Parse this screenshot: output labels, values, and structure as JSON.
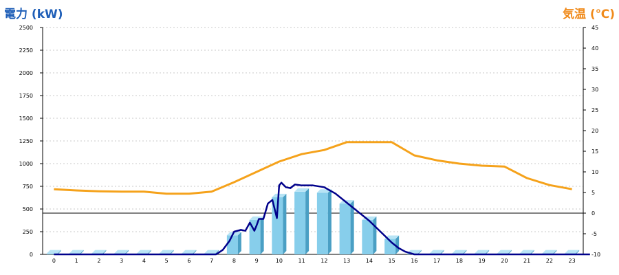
{
  "chart_data": {
    "type": "bar",
    "title_left": "電力 (kW)",
    "title_right": "気温 (℃)",
    "categories": [
      "0",
      "1",
      "2",
      "3",
      "4",
      "5",
      "6",
      "7",
      "8",
      "9",
      "10",
      "11",
      "12",
      "13",
      "14",
      "15",
      "16",
      "17",
      "18",
      "19",
      "20",
      "21",
      "22",
      "23"
    ],
    "y_left": {
      "min": 0,
      "max": 2500,
      "step": 250,
      "ticks": [
        "0",
        "250",
        "500",
        "750",
        "1000",
        "1250",
        "1500",
        "1750",
        "2000",
        "2250",
        "2500"
      ]
    },
    "y_right": {
      "min": -10,
      "max": 45,
      "step": 5,
      "ticks": [
        "-10",
        "-5",
        "0",
        "5",
        "10",
        "15",
        "20",
        "25",
        "30",
        "35",
        "40",
        "45"
      ]
    },
    "grid": true,
    "bars": {
      "name": "power_hourly",
      "axis": "left",
      "values": [
        10,
        10,
        10,
        10,
        10,
        10,
        10,
        10,
        210,
        380,
        630,
        690,
        680,
        560,
        380,
        170,
        10,
        10,
        10,
        10,
        10,
        10,
        10,
        10
      ]
    },
    "series": [
      {
        "name": "temperature",
        "axis": "right",
        "values": [
          5.8,
          5.5,
          5.3,
          5.2,
          5.2,
          4.7,
          4.7,
          5.2,
          7.5,
          10.0,
          12.5,
          14.3,
          15.3,
          17.2,
          17.2,
          17.2,
          14.0,
          12.8,
          12.0,
          11.5,
          11.3,
          8.5,
          6.8,
          5.8
        ]
      },
      {
        "name": "power_realtime",
        "axis": "left",
        "x": [
          0,
          7.2,
          7.5,
          7.8,
          8.0,
          8.3,
          8.5,
          8.7,
          8.9,
          9.0,
          9.1,
          9.3,
          9.5,
          9.7,
          9.9,
          10.0,
          10.1,
          10.3,
          10.5,
          10.7,
          11.0,
          11.5,
          12.0,
          12.5,
          13.0,
          13.5,
          14.0,
          14.5,
          15.0,
          15.3,
          15.6,
          16.0,
          23.8
        ],
        "values": [
          0,
          0,
          50,
          150,
          250,
          270,
          260,
          350,
          260,
          320,
          390,
          390,
          560,
          600,
          400,
          760,
          790,
          740,
          730,
          770,
          760,
          760,
          740,
          670,
          570,
          470,
          370,
          250,
          130,
          70,
          30,
          0,
          0
        ]
      }
    ],
    "colors": {
      "title_left": "#1f5fb8",
      "title_right": "#f08a1a",
      "bar_front": "#87ceeb",
      "bar_side": "#4a9fc4",
      "bar_top": "#b8e4f5",
      "temp_line": "#f5a21b",
      "power_line": "#00008b",
      "grid": "#c8c8c8"
    }
  }
}
